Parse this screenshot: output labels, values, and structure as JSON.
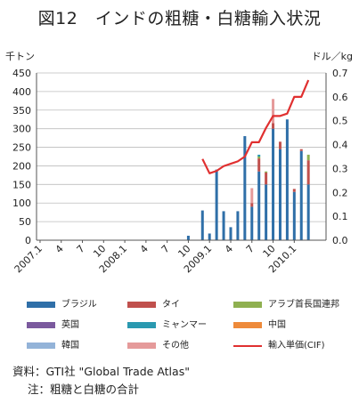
{
  "title": "図12　インドの粗糖・白糖輸入状況",
  "chart_data": {
    "type": "bar",
    "stacked": true,
    "left_unit": "千トン",
    "right_unit": "ドル／kg",
    "ylim": [
      0,
      450
    ],
    "y2lim": [
      0,
      0.7
    ],
    "yticks": [
      "0",
      "50",
      "100",
      "150",
      "200",
      "250",
      "300",
      "350",
      "400",
      "450"
    ],
    "y2ticks": [
      "0.0",
      "0.1",
      "0.2",
      "0.3",
      "0.4",
      "0.5",
      "0.6",
      "0.7"
    ],
    "x_tick_labels": [
      "2007.1",
      "4",
      "7",
      "10",
      "2008.1",
      "4",
      "7",
      "10",
      "2009.1",
      "4",
      "7",
      "10",
      "2010.1"
    ],
    "categories": [
      "2007.1",
      "2007.2",
      "2007.3",
      "2007.4",
      "2007.5",
      "2007.6",
      "2007.7",
      "2007.8",
      "2007.9",
      "2007.10",
      "2007.11",
      "2007.12",
      "2008.1",
      "2008.2",
      "2008.3",
      "2008.4",
      "2008.5",
      "2008.6",
      "2008.7",
      "2008.8",
      "2008.9",
      "2008.10",
      "2008.11",
      "2008.12",
      "2009.1",
      "2009.2",
      "2009.3",
      "2009.4",
      "2009.5",
      "2009.6",
      "2009.7",
      "2009.8",
      "2009.9",
      "2009.10",
      "2009.11",
      "2009.12",
      "2010.1",
      "2010.2",
      "2010.3",
      "2010.4",
      "2010.5"
    ],
    "series": [
      {
        "name": "ブラジル",
        "color": "#2f6fa8",
        "values": [
          0,
          0,
          0,
          0,
          0,
          0,
          0,
          0,
          0,
          0,
          0,
          0,
          0,
          0,
          0,
          0,
          0,
          0,
          0,
          0,
          0,
          12,
          0,
          80,
          18,
          190,
          78,
          35,
          78,
          280,
          90,
          185,
          150,
          300,
          245,
          325,
          130,
          240,
          150,
          0,
          0
        ]
      },
      {
        "name": "タイ",
        "color": "#c0504d",
        "values": [
          0,
          0,
          0,
          0,
          0,
          0,
          0,
          0,
          0,
          0,
          0,
          0,
          0,
          0,
          0,
          0,
          0,
          0,
          0,
          0,
          0,
          0,
          0,
          0,
          0,
          0,
          0,
          0,
          0,
          0,
          10,
          35,
          32,
          15,
          20,
          0,
          8,
          5,
          65,
          0,
          0
        ]
      },
      {
        "name": "アラブ首長国連邦",
        "color": "#8fb050",
        "values": [
          0,
          0,
          0,
          0,
          0,
          0,
          0,
          0,
          0,
          0,
          0,
          0,
          0,
          0,
          0,
          0,
          0,
          0,
          0,
          0,
          0,
          0,
          0,
          0,
          0,
          0,
          0,
          0,
          0,
          0,
          0,
          5,
          3,
          0,
          0,
          0,
          0,
          0,
          15,
          0,
          0
        ]
      },
      {
        "name": "英国",
        "color": "#7b5a9e",
        "values": [
          0,
          0,
          0,
          0,
          0,
          0,
          0,
          0,
          0,
          0,
          0,
          0,
          0,
          0,
          0,
          0,
          0,
          0,
          0,
          0,
          0,
          0,
          0,
          0,
          0,
          0,
          0,
          0,
          0,
          0,
          0,
          0,
          0,
          0,
          0,
          0,
          0,
          0,
          0,
          0,
          0
        ]
      },
      {
        "name": "ミャンマー",
        "color": "#2a99b0",
        "values": [
          0,
          0,
          0,
          0,
          0,
          0,
          0,
          0,
          0,
          0,
          0,
          0,
          0,
          0,
          0,
          0,
          0,
          0,
          0,
          0,
          0,
          0,
          0,
          0,
          0,
          0,
          0,
          0,
          0,
          0,
          0,
          5,
          0,
          0,
          0,
          0,
          0,
          0,
          0,
          0,
          0
        ]
      },
      {
        "name": "中国",
        "color": "#ee8a3a",
        "values": [
          0,
          0,
          0,
          0,
          0,
          0,
          0,
          0,
          0,
          0,
          0,
          0,
          0,
          0,
          0,
          0,
          0,
          0,
          0,
          0,
          0,
          0,
          0,
          0,
          0,
          0,
          0,
          0,
          0,
          0,
          0,
          0,
          0,
          0,
          0,
          0,
          0,
          0,
          0,
          0,
          0
        ]
      },
      {
        "name": "韓国",
        "color": "#93b3d8",
        "values": [
          0,
          0,
          0,
          0,
          0,
          0,
          0,
          0,
          0,
          0,
          0,
          0,
          0,
          0,
          0,
          0,
          0,
          0,
          0,
          0,
          0,
          0,
          0,
          0,
          0,
          0,
          0,
          0,
          0,
          0,
          0,
          0,
          0,
          0,
          0,
          0,
          0,
          0,
          0,
          0,
          0
        ]
      },
      {
        "name": "その他",
        "color": "#e59a9a",
        "values": [
          0,
          0,
          0,
          0,
          0,
          0,
          0,
          0,
          0,
          0,
          0,
          0,
          0,
          0,
          0,
          0,
          0,
          0,
          0,
          0,
          0,
          0,
          0,
          0,
          0,
          0,
          0,
          0,
          0,
          0,
          40,
          0,
          0,
          65,
          0,
          0,
          0,
          0,
          0,
          0,
          0
        ]
      }
    ],
    "line": {
      "name": "輸入単価(CIF)",
      "color": "#e03030",
      "axis": "right",
      "values": [
        null,
        null,
        null,
        null,
        null,
        null,
        null,
        null,
        null,
        null,
        null,
        null,
        null,
        null,
        null,
        null,
        null,
        null,
        null,
        null,
        null,
        null,
        null,
        0.34,
        0.28,
        0.29,
        0.31,
        0.32,
        0.33,
        0.35,
        0.41,
        0.41,
        0.47,
        0.52,
        0.52,
        0.53,
        0.6,
        0.6,
        0.67,
        null,
        null
      ]
    }
  },
  "legend": [
    {
      "label": "ブラジル",
      "color": "#2f6fa8",
      "kind": "bar"
    },
    {
      "label": "タイ",
      "color": "#c0504d",
      "kind": "bar"
    },
    {
      "label": "アラブ首長国連邦",
      "color": "#8fb050",
      "kind": "bar"
    },
    {
      "label": "英国",
      "color": "#7b5a9e",
      "kind": "bar"
    },
    {
      "label": "ミャンマー",
      "color": "#2a99b0",
      "kind": "bar"
    },
    {
      "label": "中国",
      "color": "#ee8a3a",
      "kind": "bar"
    },
    {
      "label": "韓国",
      "color": "#93b3d8",
      "kind": "bar"
    },
    {
      "label": "その他",
      "color": "#e59a9a",
      "kind": "bar"
    },
    {
      "label": "輸入単価(CIF)",
      "color": "#e03030",
      "kind": "line"
    }
  ],
  "notes": {
    "source": "資料：GTI社 \"Global Trade Atlas\"",
    "note": "注：粗糖と白糖の合計"
  }
}
